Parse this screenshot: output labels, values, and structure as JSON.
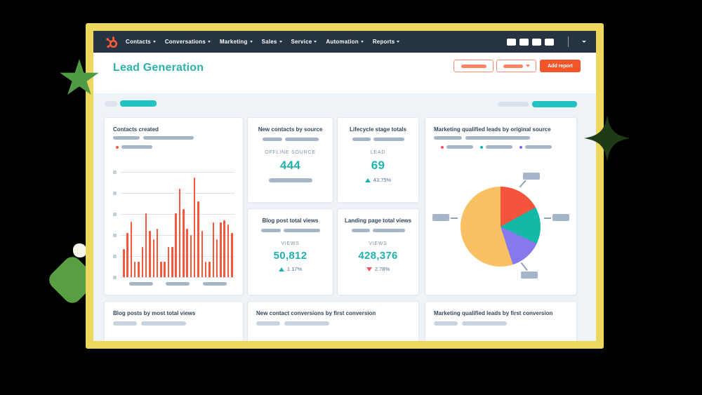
{
  "nav": {
    "items": [
      {
        "label": "Contacts"
      },
      {
        "label": "Conversations"
      },
      {
        "label": "Marketing"
      },
      {
        "label": "Sales"
      },
      {
        "label": "Service"
      },
      {
        "label": "Automation"
      },
      {
        "label": "Reports"
      }
    ]
  },
  "header": {
    "title": "Lead Generation",
    "add_report_label": "Add report"
  },
  "cards": {
    "contacts_created": {
      "title": "Contacts created"
    },
    "new_contacts_by_source": {
      "title": "New contacts by source",
      "metric_label": "OFFLINE SOURCE",
      "value": "444"
    },
    "lifecycle_stage_totals": {
      "title": "Lifecycle stage totals",
      "metric_label": "LEAD",
      "value": "69",
      "delta": "43.75%",
      "delta_direction": "up"
    },
    "blog_post_total_views": {
      "title": "Blog post total views",
      "metric_label": "VIEWS",
      "value": "50,812",
      "delta": "1.17%",
      "delta_direction": "up"
    },
    "landing_page_total_views": {
      "title": "Landing page total views",
      "metric_label": "VIEWS",
      "value": "428,376",
      "delta": "2.78%",
      "delta_direction": "down"
    },
    "mql_by_original_source": {
      "title": "Marketing qualified leads by original source"
    },
    "blog_posts_by_most_total_views": {
      "title": "Blog posts by most total views"
    },
    "new_contact_conversions_by_first_conversion": {
      "title": "New contact conversions by first conversion"
    },
    "mql_by_first_conversion": {
      "title": "Marketing qualified leads by first conversion"
    }
  },
  "colors": {
    "nav_bg": "#253342",
    "frame_yellow": "#eed75d",
    "title_teal": "#2eb3ab",
    "metric_teal": "#1fb2af",
    "accent_orange": "#ff5c35",
    "add_report_orange": "#f2572c",
    "bar_orange": "#f4583f",
    "negative_red": "#f2545b"
  },
  "chart_data": [
    {
      "type": "bar",
      "title": "Contacts created",
      "note": "axis tick labels, legend and x labels are placeholder pills in the screenshot (no text)",
      "values": [
        27,
        42,
        53,
        15,
        15,
        29,
        61,
        44,
        36,
        46,
        15,
        15,
        29,
        29,
        61,
        84,
        65,
        46,
        40,
        95,
        72,
        44,
        15,
        15,
        52,
        36,
        52,
        54,
        50,
        42
      ],
      "ylim": [
        0,
        100
      ],
      "gridlines": 6,
      "x_label_groups": 3,
      "bar_color": "#f4583f"
    },
    {
      "type": "pie",
      "title": "Marketing qualified leads by original source",
      "note": "slice labels are placeholder pills in the screenshot (no text)",
      "values": [
        17,
        15,
        13,
        55
      ],
      "colors": [
        "#f4533c",
        "#14b8a6",
        "#8679ee",
        "#f9c163"
      ]
    }
  ]
}
